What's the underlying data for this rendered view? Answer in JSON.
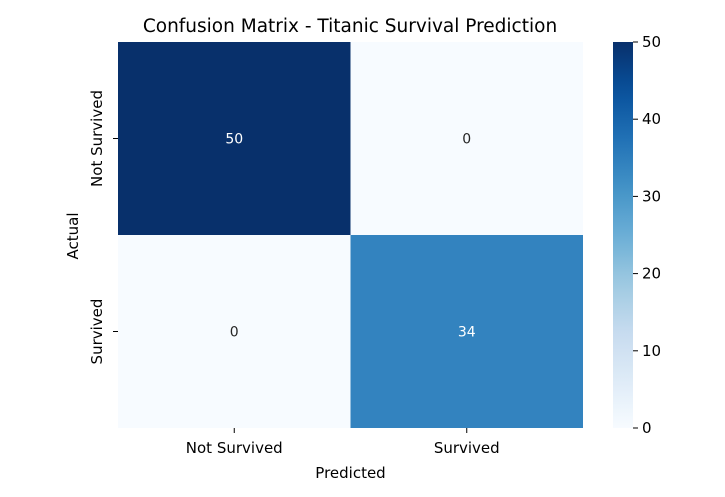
{
  "chart_data": {
    "type": "heatmap",
    "title": "Confusion Matrix - Titanic Survival Prediction",
    "xlabel": "Predicted",
    "ylabel": "Actual",
    "x_categories": [
      "Not Survived",
      "Survived"
    ],
    "y_categories": [
      "Not Survived",
      "Survived"
    ],
    "values": [
      [
        50,
        0
      ],
      [
        0,
        34
      ]
    ],
    "colormap": "Blues",
    "vmin": 0,
    "vmax": 50,
    "colorbar_ticks": [
      "0",
      "10",
      "20",
      "30",
      "40",
      "50"
    ],
    "grid": false
  }
}
